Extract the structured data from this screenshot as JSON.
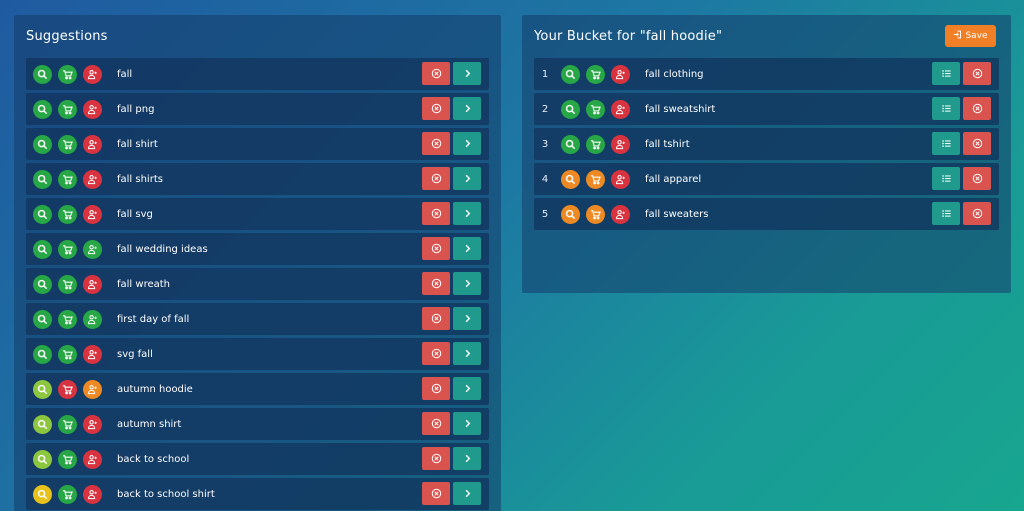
{
  "colors": {
    "green": "#27a745",
    "red": "#d9333f",
    "orange": "#ee8a23",
    "lime": "#8dc63f",
    "yellow": "#e8c21a"
  },
  "suggestions": {
    "title": "Suggestions",
    "items": [
      {
        "label": "fall",
        "icons": [
          "green",
          "green",
          "red"
        ]
      },
      {
        "label": "fall png",
        "icons": [
          "green",
          "green",
          "red"
        ]
      },
      {
        "label": "fall shirt",
        "icons": [
          "green",
          "green",
          "red"
        ]
      },
      {
        "label": "fall shirts",
        "icons": [
          "green",
          "green",
          "red"
        ]
      },
      {
        "label": "fall svg",
        "icons": [
          "green",
          "green",
          "red"
        ]
      },
      {
        "label": "fall wedding ideas",
        "icons": [
          "green",
          "green",
          "green"
        ]
      },
      {
        "label": "fall wreath",
        "icons": [
          "green",
          "green",
          "red"
        ]
      },
      {
        "label": "first day of fall",
        "icons": [
          "green",
          "green",
          "green"
        ]
      },
      {
        "label": "svg fall",
        "icons": [
          "green",
          "green",
          "red"
        ]
      },
      {
        "label": "autumn hoodie",
        "icons": [
          "lime",
          "red",
          "orange"
        ]
      },
      {
        "label": "autumn shirt",
        "icons": [
          "lime",
          "green",
          "red"
        ]
      },
      {
        "label": "back to school",
        "icons": [
          "lime",
          "green",
          "red"
        ]
      },
      {
        "label": "back to school shirt",
        "icons": [
          "yellow",
          "green",
          "red"
        ]
      }
    ]
  },
  "bucket": {
    "title": "Your Bucket for \"fall hoodie\"",
    "save_label": "Save",
    "items": [
      {
        "index": "1",
        "label": "fall clothing",
        "icons": [
          "green",
          "green",
          "red"
        ]
      },
      {
        "index": "2",
        "label": "fall sweatshirt",
        "icons": [
          "green",
          "green",
          "red"
        ]
      },
      {
        "index": "3",
        "label": "fall tshirt",
        "icons": [
          "green",
          "green",
          "red"
        ]
      },
      {
        "index": "4",
        "label": "fall apparel",
        "icons": [
          "orange",
          "orange",
          "red"
        ]
      },
      {
        "index": "5",
        "label": "fall sweaters",
        "icons": [
          "orange",
          "orange",
          "red"
        ]
      }
    ]
  },
  "icon_names": [
    "search-icon",
    "cart-icon",
    "competition-icon",
    "remove-icon",
    "chevron-right-icon",
    "list-icon",
    "sign-in-icon"
  ]
}
